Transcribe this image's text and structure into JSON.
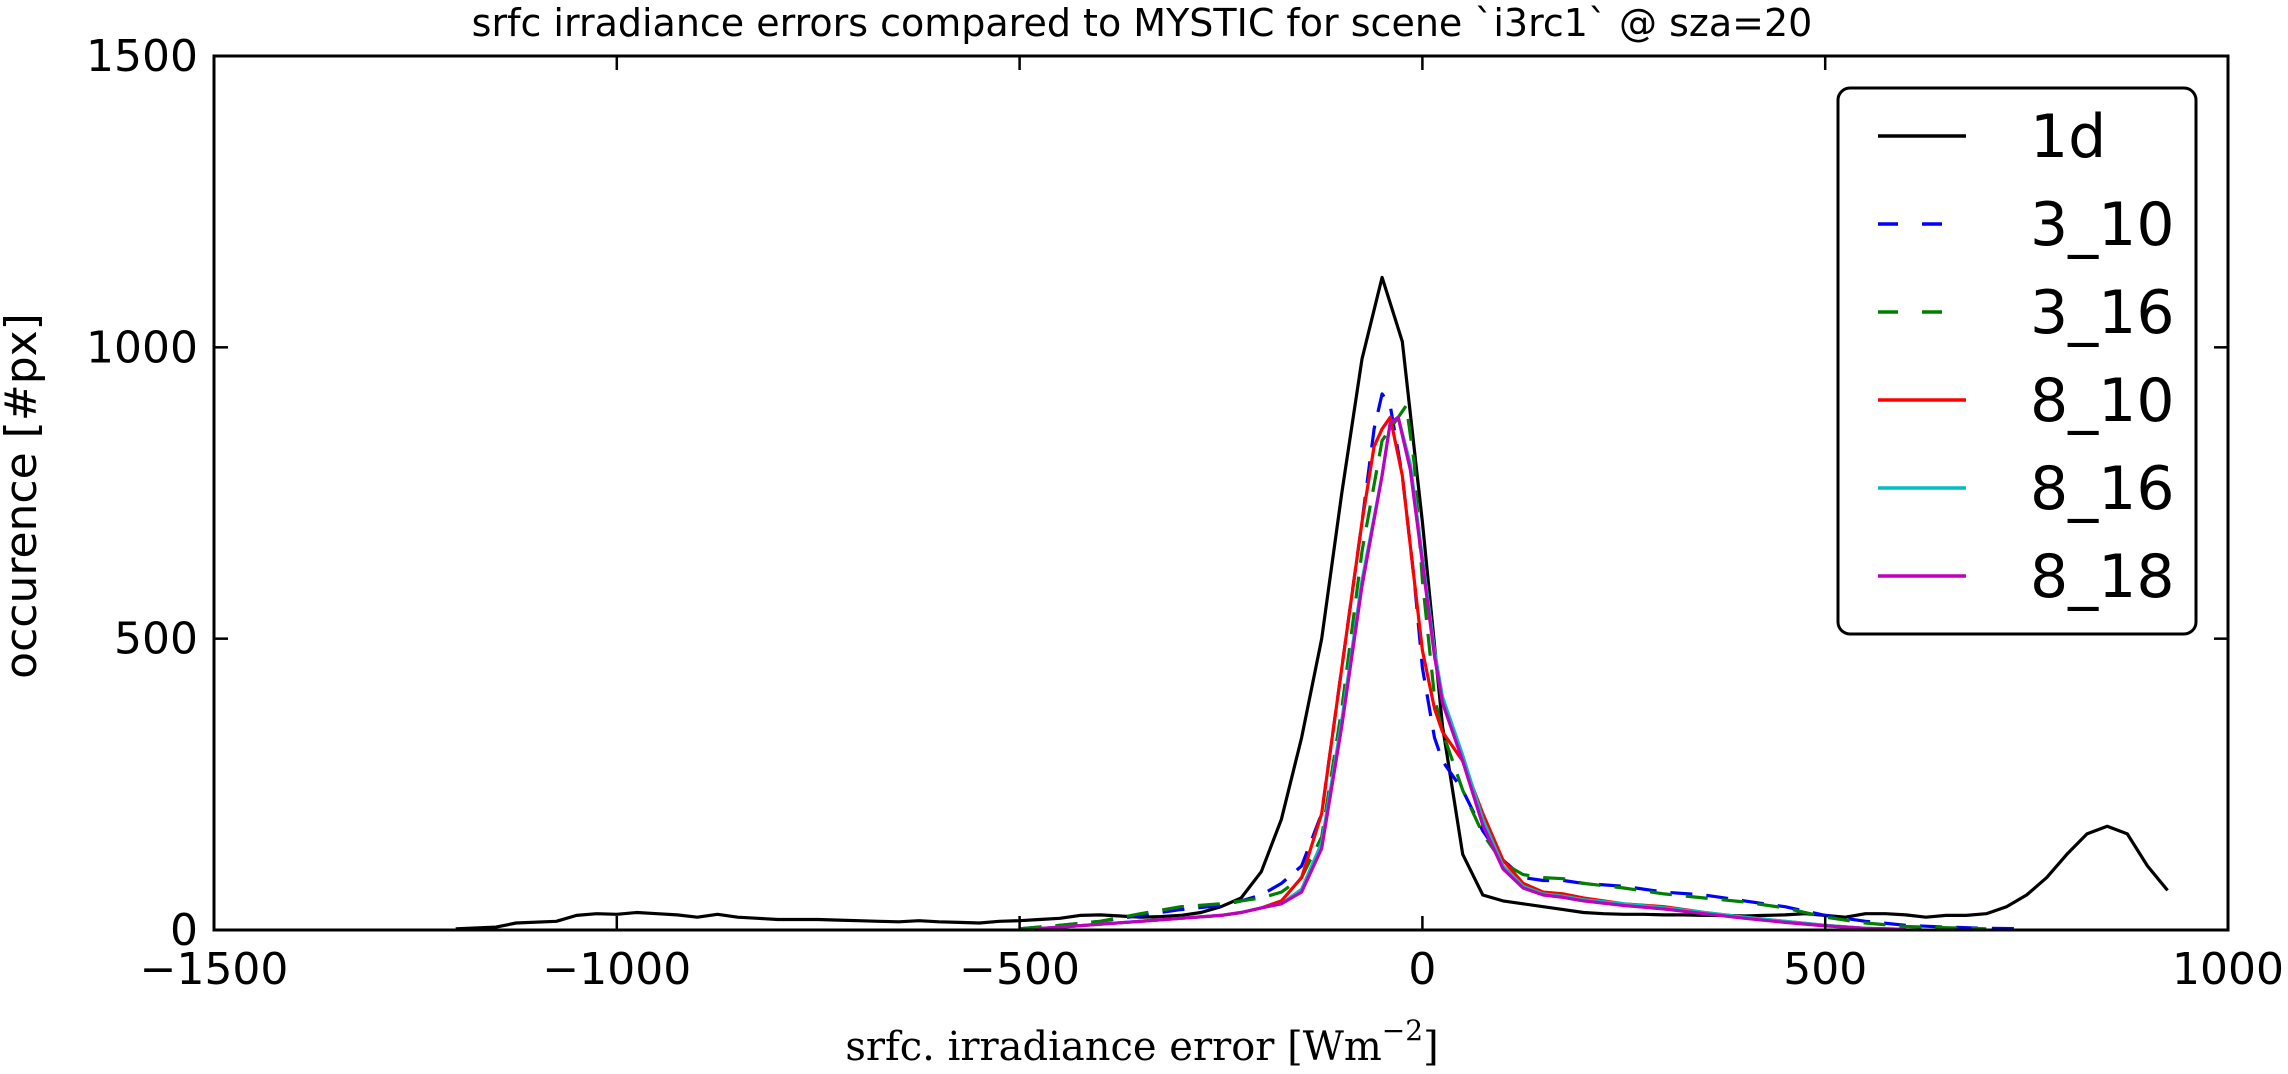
{
  "chart_data": {
    "type": "line",
    "title": "srfc irradiance errors compared to MYSTIC for scene `i3rc1` @ sza=20",
    "xlabel": "srfc. irradiance error [Wm",
    "xlabel_sup": "−2",
    "xlabel_close": "]",
    "ylabel": "occurence [#px]",
    "xlim": [
      -1500,
      1000
    ],
    "ylim": [
      0,
      1500
    ],
    "xticks": [
      -1500,
      -1000,
      -500,
      0,
      500,
      1000
    ],
    "xtick_labels": [
      "−1500",
      "−1000",
      "−500",
      "0",
      "500",
      "1000"
    ],
    "yticks": [
      0,
      500,
      1000,
      1500
    ],
    "ytick_labels": [
      "0",
      "500",
      "1000",
      "1500"
    ],
    "legend_position": "top-right",
    "grid": false,
    "series": [
      {
        "name": "1d",
        "color": "#000000",
        "dash": "solid",
        "points": [
          [
            -1200,
            2
          ],
          [
            -1150,
            5
          ],
          [
            -1125,
            12
          ],
          [
            -1075,
            15
          ],
          [
            -1050,
            25
          ],
          [
            -1025,
            28
          ],
          [
            -1000,
            27
          ],
          [
            -975,
            30
          ],
          [
            -950,
            28
          ],
          [
            -925,
            26
          ],
          [
            -900,
            22
          ],
          [
            -875,
            27
          ],
          [
            -850,
            22
          ],
          [
            -825,
            20
          ],
          [
            -800,
            18
          ],
          [
            -775,
            18
          ],
          [
            -750,
            18
          ],
          [
            -725,
            17
          ],
          [
            -700,
            16
          ],
          [
            -675,
            15
          ],
          [
            -650,
            14
          ],
          [
            -625,
            16
          ],
          [
            -600,
            14
          ],
          [
            -575,
            13
          ],
          [
            -550,
            12
          ],
          [
            -525,
            15
          ],
          [
            -500,
            16
          ],
          [
            -475,
            18
          ],
          [
            -450,
            20
          ],
          [
            -425,
            25
          ],
          [
            -400,
            26
          ],
          [
            -375,
            24
          ],
          [
            -350,
            22
          ],
          [
            -325,
            23
          ],
          [
            -300,
            25
          ],
          [
            -275,
            30
          ],
          [
            -250,
            40
          ],
          [
            -225,
            55
          ],
          [
            -200,
            100
          ],
          [
            -175,
            190
          ],
          [
            -150,
            330
          ],
          [
            -125,
            500
          ],
          [
            -100,
            750
          ],
          [
            -75,
            980
          ],
          [
            -50,
            1120
          ],
          [
            -25,
            1010
          ],
          [
            0,
            700
          ],
          [
            25,
            350
          ],
          [
            50,
            130
          ],
          [
            75,
            60
          ],
          [
            100,
            50
          ],
          [
            125,
            45
          ],
          [
            150,
            40
          ],
          [
            175,
            35
          ],
          [
            200,
            30
          ],
          [
            225,
            28
          ],
          [
            250,
            27
          ],
          [
            275,
            27
          ],
          [
            300,
            26
          ],
          [
            325,
            26
          ],
          [
            350,
            25
          ],
          [
            375,
            25
          ],
          [
            400,
            24
          ],
          [
            425,
            25
          ],
          [
            450,
            26
          ],
          [
            475,
            28
          ],
          [
            500,
            25
          ],
          [
            525,
            22
          ],
          [
            550,
            28
          ],
          [
            575,
            28
          ],
          [
            600,
            26
          ],
          [
            625,
            22
          ],
          [
            650,
            25
          ],
          [
            675,
            25
          ],
          [
            700,
            28
          ],
          [
            725,
            40
          ],
          [
            750,
            60
          ],
          [
            775,
            90
          ],
          [
            800,
            130
          ],
          [
            825,
            165
          ],
          [
            850,
            178
          ],
          [
            875,
            165
          ],
          [
            900,
            110
          ],
          [
            925,
            68
          ]
        ]
      },
      {
        "name": "3_10",
        "color": "#0000ff",
        "dash": "dashed",
        "points": [
          [
            -500,
            2
          ],
          [
            -450,
            8
          ],
          [
            -400,
            15
          ],
          [
            -350,
            25
          ],
          [
            -300,
            35
          ],
          [
            -250,
            42
          ],
          [
            -225,
            50
          ],
          [
            -200,
            60
          ],
          [
            -175,
            80
          ],
          [
            -150,
            110
          ],
          [
            -125,
            200
          ],
          [
            -100,
            450
          ],
          [
            -75,
            700
          ],
          [
            -60,
            860
          ],
          [
            -50,
            920
          ],
          [
            -40,
            900
          ],
          [
            -25,
            780
          ],
          [
            -10,
            600
          ],
          [
            0,
            450
          ],
          [
            15,
            330
          ],
          [
            25,
            290
          ],
          [
            50,
            240
          ],
          [
            75,
            170
          ],
          [
            100,
            120
          ],
          [
            125,
            90
          ],
          [
            150,
            85
          ],
          [
            175,
            85
          ],
          [
            200,
            80
          ],
          [
            250,
            75
          ],
          [
            300,
            65
          ],
          [
            350,
            60
          ],
          [
            400,
            50
          ],
          [
            450,
            40
          ],
          [
            500,
            25
          ],
          [
            550,
            15
          ],
          [
            600,
            8
          ],
          [
            650,
            5
          ],
          [
            700,
            3
          ],
          [
            750,
            2
          ]
        ]
      },
      {
        "name": "3_16",
        "color": "#008000",
        "dash": "dashed",
        "points": [
          [
            -500,
            2
          ],
          [
            -450,
            8
          ],
          [
            -400,
            15
          ],
          [
            -350,
            28
          ],
          [
            -300,
            40
          ],
          [
            -250,
            45
          ],
          [
            -225,
            50
          ],
          [
            -200,
            55
          ],
          [
            -175,
            65
          ],
          [
            -150,
            90
          ],
          [
            -125,
            160
          ],
          [
            -100,
            380
          ],
          [
            -75,
            650
          ],
          [
            -50,
            840
          ],
          [
            -35,
            870
          ],
          [
            -20,
            900
          ],
          [
            -10,
            800
          ],
          [
            0,
            600
          ],
          [
            15,
            400
          ],
          [
            25,
            340
          ],
          [
            50,
            240
          ],
          [
            75,
            165
          ],
          [
            100,
            115
          ],
          [
            125,
            95
          ],
          [
            150,
            90
          ],
          [
            175,
            88
          ],
          [
            200,
            80
          ],
          [
            250,
            72
          ],
          [
            300,
            62
          ],
          [
            350,
            55
          ],
          [
            400,
            48
          ],
          [
            450,
            38
          ],
          [
            500,
            22
          ],
          [
            550,
            12
          ],
          [
            600,
            6
          ],
          [
            650,
            4
          ],
          [
            700,
            2
          ]
        ]
      },
      {
        "name": "8_10",
        "color": "#ff0000",
        "dash": "solid",
        "points": [
          [
            -480,
            2
          ],
          [
            -450,
            5
          ],
          [
            -400,
            10
          ],
          [
            -350,
            15
          ],
          [
            -300,
            20
          ],
          [
            -250,
            25
          ],
          [
            -225,
            30
          ],
          [
            -200,
            38
          ],
          [
            -175,
            50
          ],
          [
            -150,
            90
          ],
          [
            -125,
            200
          ],
          [
            -100,
            450
          ],
          [
            -75,
            700
          ],
          [
            -60,
            830
          ],
          [
            -50,
            860
          ],
          [
            -40,
            880
          ],
          [
            -25,
            780
          ],
          [
            -10,
            600
          ],
          [
            0,
            480
          ],
          [
            15,
            380
          ],
          [
            25,
            340
          ],
          [
            50,
            290
          ],
          [
            75,
            200
          ],
          [
            100,
            120
          ],
          [
            125,
            80
          ],
          [
            150,
            65
          ],
          [
            175,
            62
          ],
          [
            200,
            55
          ],
          [
            250,
            45
          ],
          [
            300,
            40
          ],
          [
            350,
            30
          ],
          [
            400,
            22
          ],
          [
            450,
            15
          ],
          [
            500,
            8
          ],
          [
            550,
            3
          ],
          [
            600,
            1
          ]
        ]
      },
      {
        "name": "8_16",
        "color": "#00bfbf",
        "dash": "solid",
        "points": [
          [
            -480,
            2
          ],
          [
            -450,
            5
          ],
          [
            -400,
            10
          ],
          [
            -350,
            15
          ],
          [
            -300,
            20
          ],
          [
            -250,
            25
          ],
          [
            -225,
            30
          ],
          [
            -200,
            38
          ],
          [
            -175,
            45
          ],
          [
            -150,
            70
          ],
          [
            -125,
            150
          ],
          [
            -100,
            360
          ],
          [
            -75,
            600
          ],
          [
            -50,
            780
          ],
          [
            -40,
            870
          ],
          [
            -30,
            880
          ],
          [
            -15,
            800
          ],
          [
            0,
            640
          ],
          [
            15,
            480
          ],
          [
            25,
            400
          ],
          [
            50,
            300
          ],
          [
            75,
            190
          ],
          [
            100,
            110
          ],
          [
            125,
            75
          ],
          [
            150,
            62
          ],
          [
            175,
            58
          ],
          [
            200,
            52
          ],
          [
            250,
            45
          ],
          [
            300,
            38
          ],
          [
            350,
            30
          ],
          [
            400,
            22
          ],
          [
            450,
            15
          ],
          [
            500,
            8
          ],
          [
            550,
            3
          ],
          [
            600,
            1
          ]
        ]
      },
      {
        "name": "8_18",
        "color": "#bf00bf",
        "dash": "solid",
        "points": [
          [
            -480,
            2
          ],
          [
            -450,
            5
          ],
          [
            -400,
            10
          ],
          [
            -350,
            15
          ],
          [
            -300,
            20
          ],
          [
            -250,
            25
          ],
          [
            -225,
            30
          ],
          [
            -200,
            38
          ],
          [
            -175,
            45
          ],
          [
            -150,
            65
          ],
          [
            -125,
            140
          ],
          [
            -100,
            350
          ],
          [
            -75,
            590
          ],
          [
            -50,
            780
          ],
          [
            -40,
            870
          ],
          [
            -30,
            880
          ],
          [
            -15,
            790
          ],
          [
            0,
            630
          ],
          [
            15,
            470
          ],
          [
            25,
            390
          ],
          [
            50,
            290
          ],
          [
            75,
            180
          ],
          [
            100,
            105
          ],
          [
            125,
            72
          ],
          [
            150,
            60
          ],
          [
            175,
            56
          ],
          [
            200,
            50
          ],
          [
            250,
            42
          ],
          [
            300,
            36
          ],
          [
            350,
            28
          ],
          [
            400,
            20
          ],
          [
            450,
            13
          ],
          [
            500,
            7
          ],
          [
            550,
            3
          ],
          [
            600,
            1
          ]
        ]
      }
    ]
  }
}
